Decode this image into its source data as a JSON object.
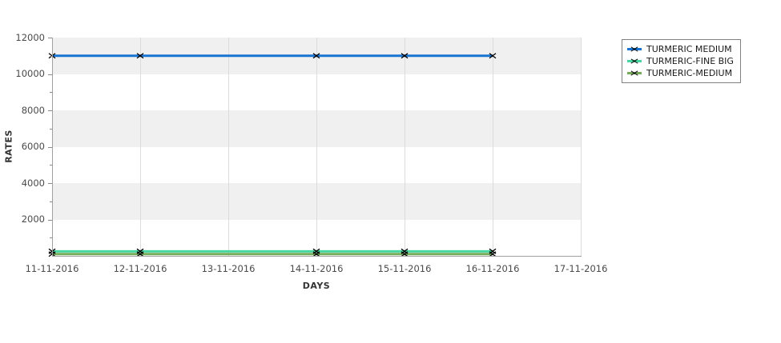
{
  "chart_data": {
    "type": "line",
    "title": "",
    "xlabel": "DAYS",
    "ylabel": "RATES",
    "ylim": [
      0,
      12000
    ],
    "y_ticks": [
      2000,
      4000,
      6000,
      8000,
      10000,
      12000
    ],
    "y_minor_ticks": [
      1000,
      3000,
      5000,
      7000,
      9000,
      11000
    ],
    "x_categories": [
      "11-11-2016",
      "12-11-2016",
      "13-11-2016",
      "14-11-2016",
      "15-11-2016",
      "16-11-2016",
      "17-11-2016"
    ],
    "grid": {
      "vertical_gridlines": true,
      "horizontal_bands": true,
      "band_colors": [
        "#f0f0f0",
        "#ffffff"
      ]
    },
    "legend_position": "outside-top-right",
    "marker": "x",
    "marker_color": "#000000",
    "series": [
      {
        "name": "TURMERIC MEDIUM",
        "color": "#1874d2",
        "x": [
          "11-11-2016",
          "12-11-2016",
          "14-11-2016",
          "15-11-2016",
          "16-11-2016"
        ],
        "y": [
          11000,
          11000,
          11000,
          11000,
          11000
        ]
      },
      {
        "name": "TURMERIC-FINE BIG",
        "color": "#46d6a0",
        "x": [
          "11-11-2016",
          "12-11-2016",
          "14-11-2016",
          "15-11-2016",
          "16-11-2016"
        ],
        "y": [
          250,
          250,
          250,
          250,
          250
        ]
      },
      {
        "name": "TURMERIC-MEDIUM",
        "color": "#76ab59",
        "x": [
          "11-11-2016",
          "12-11-2016",
          "14-11-2016",
          "15-11-2016",
          "16-11-2016"
        ],
        "y": [
          100,
          100,
          100,
          100,
          100
        ]
      }
    ]
  },
  "colors": {
    "axis": "#a0a0a0",
    "tick": "#8a8a8a",
    "tick_label": "#4a4a4a",
    "axis_title": "#333333",
    "gridline": "#dcdcdc",
    "legend_border": "#808080",
    "legend_text": "#1a1a1a"
  }
}
